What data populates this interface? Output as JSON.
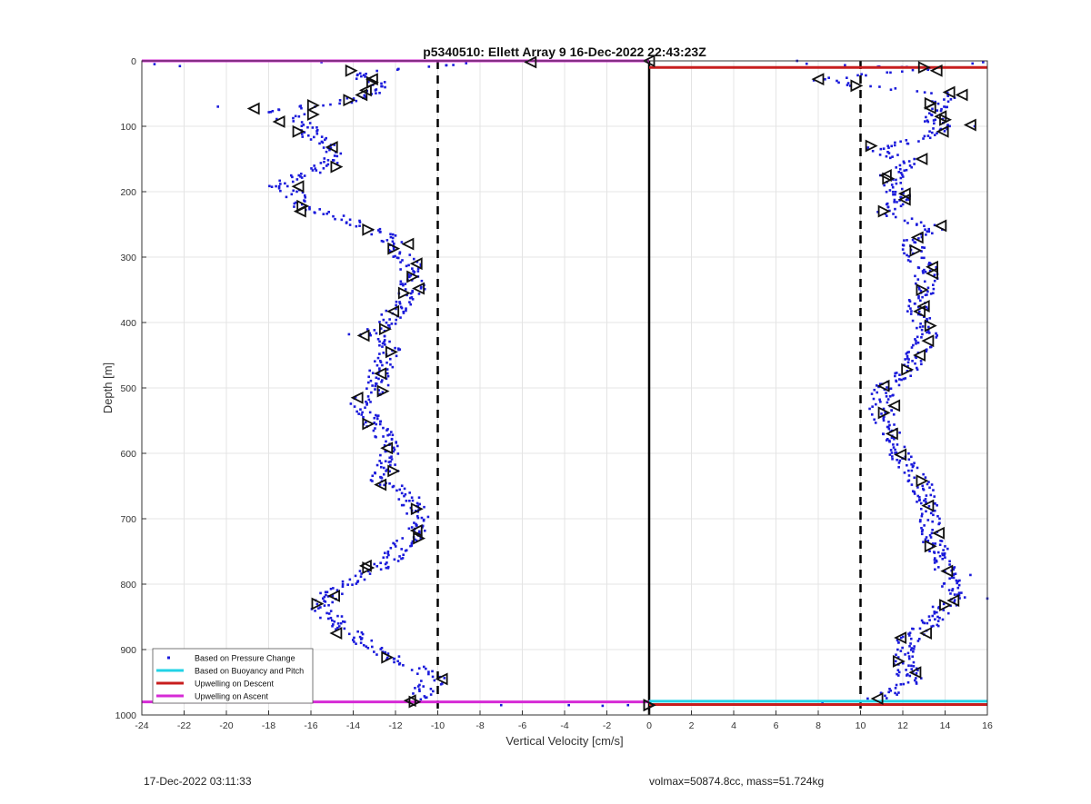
{
  "footer": {
    "left": "17-Dec-2022 03:11:33",
    "right": "volmax=50874.8cc, mass=51.724kg"
  },
  "colors": {
    "points": "#1a1adb",
    "buoyancy": "#22d3e6",
    "descent": "#c81e1e",
    "ascent": "#d62ad6",
    "markers": "#111111",
    "grid": "#e4e4e4"
  },
  "chart_data": {
    "type": "scatter",
    "title": "p5340510: Ellett Array 9 16-Dec-2022 22:43:23Z",
    "xlabel": "Vertical Velocity [cm/s]",
    "ylabel": "Depth [m]",
    "xlim": [
      -24,
      16
    ],
    "ylim": [
      0,
      1000
    ],
    "y_reversed": true,
    "grid": true,
    "xticks": [
      -24,
      -22,
      -20,
      -18,
      -16,
      -14,
      -12,
      -10,
      -8,
      -6,
      -4,
      -2,
      0,
      2,
      4,
      6,
      8,
      10,
      12,
      14,
      16
    ],
    "yticks": [
      0,
      100,
      200,
      300,
      400,
      500,
      600,
      700,
      800,
      900,
      1000
    ],
    "legend": {
      "location": "bottom-left",
      "entries": [
        {
          "label": "Based on Pressure Change",
          "style": "dot",
          "color": "#1a1adb"
        },
        {
          "label": "Based on Buoyancy and Pitch",
          "style": "line",
          "color": "#22d3e6"
        },
        {
          "label": "Upwelling on Descent",
          "style": "line",
          "color": "#c81e1e"
        },
        {
          "label": "Upwelling on Ascent",
          "style": "line",
          "color": "#d62ad6"
        }
      ]
    },
    "reference_lines": [
      {
        "x": -10,
        "style": "dashed"
      },
      {
        "x": 0,
        "style": "solid"
      },
      {
        "x": 10,
        "style": "dashed"
      }
    ],
    "upwelling_ascent": [
      [
        -24,
        0
      ],
      [
        0,
        0
      ],
      [
        -24,
        980
      ],
      [
        0,
        980
      ]
    ],
    "upwelling_descent": [
      [
        0,
        10
      ],
      [
        16,
        10
      ],
      [
        0,
        984
      ],
      [
        16,
        984
      ]
    ],
    "buoyancy_pitch": [
      [
        0,
        979
      ],
      [
        16,
        979
      ]
    ],
    "series": [
      {
        "name": "Based on Pressure Change",
        "role": "descent_profile",
        "profile": [
          [
            0,
            0
          ],
          [
            7,
            3
          ],
          [
            8,
            28
          ],
          [
            10,
            38
          ],
          [
            13,
            12
          ],
          [
            14,
            50
          ],
          [
            13.5,
            85
          ],
          [
            13.8,
            110
          ],
          [
            10.5,
            135
          ],
          [
            12.5,
            155
          ],
          [
            11.3,
            180
          ],
          [
            12,
            210
          ],
          [
            11.2,
            235
          ],
          [
            13.5,
            255
          ],
          [
            12.6,
            275
          ],
          [
            12.4,
            295
          ],
          [
            13.2,
            320
          ],
          [
            12.9,
            355
          ],
          [
            12.6,
            385
          ],
          [
            13.2,
            405
          ],
          [
            13.1,
            430
          ],
          [
            12.6,
            455
          ],
          [
            12.1,
            475
          ],
          [
            11.2,
            500
          ],
          [
            10.8,
            520
          ],
          [
            11.1,
            545
          ],
          [
            11.4,
            570
          ],
          [
            11.7,
            595
          ],
          [
            12.3,
            625
          ],
          [
            12.9,
            650
          ],
          [
            13.1,
            680
          ],
          [
            13.4,
            710
          ],
          [
            13.5,
            740
          ],
          [
            13.9,
            760
          ],
          [
            14.2,
            790
          ],
          [
            14.5,
            820
          ],
          [
            13.8,
            840
          ],
          [
            13.1,
            865
          ],
          [
            12.3,
            885
          ],
          [
            11.9,
            905
          ],
          [
            12.1,
            925
          ],
          [
            12.4,
            945
          ],
          [
            11.3,
            970
          ],
          [
            10,
            980
          ],
          [
            0,
            985
          ]
        ],
        "extra_points": [
          [
            7,
            0
          ],
          [
            15.3,
            4
          ],
          [
            15.8,
            2
          ],
          [
            16,
            822
          ],
          [
            15.2,
            786
          ],
          [
            15.4,
            100
          ],
          [
            12.7,
            150
          ],
          [
            1.2,
            984
          ],
          [
            5.5,
            984
          ],
          [
            8.2,
            981
          ]
        ]
      },
      {
        "name": "Based on Pressure Change",
        "role": "ascent_profile",
        "profile": [
          [
            -11,
            980
          ],
          [
            -10.2,
            945
          ],
          [
            -11.2,
            925
          ],
          [
            -12.3,
            912
          ],
          [
            -13.2,
            895
          ],
          [
            -14.2,
            872
          ],
          [
            -15.3,
            845
          ],
          [
            -15.6,
            830
          ],
          [
            -14.9,
            812
          ],
          [
            -13.7,
            790
          ],
          [
            -12.4,
            768
          ],
          [
            -11.8,
            745
          ],
          [
            -11.1,
            722
          ],
          [
            -10.9,
            700
          ],
          [
            -11.2,
            680
          ],
          [
            -11.6,
            658
          ],
          [
            -12.7,
            640
          ],
          [
            -12.3,
            625
          ],
          [
            -12.4,
            600
          ],
          [
            -12.5,
            580
          ],
          [
            -12.9,
            560
          ],
          [
            -13.3,
            545
          ],
          [
            -13.7,
            520
          ],
          [
            -12.8,
            505
          ],
          [
            -12.9,
            485
          ],
          [
            -12.6,
            465
          ],
          [
            -12.2,
            445
          ],
          [
            -12.4,
            425
          ],
          [
            -13.3,
            420
          ],
          [
            -12.6,
            405
          ],
          [
            -12.1,
            385
          ],
          [
            -11.5,
            360
          ],
          [
            -11.1,
            350
          ],
          [
            -11.4,
            330
          ],
          [
            -11.3,
            310
          ],
          [
            -11.9,
            285
          ],
          [
            -12.6,
            265
          ],
          [
            -13.3,
            255
          ],
          [
            -14.5,
            240
          ],
          [
            -16.3,
            225
          ],
          [
            -16.9,
            200
          ],
          [
            -17.6,
            190
          ],
          [
            -16.6,
            175
          ],
          [
            -15.6,
            165
          ],
          [
            -14.8,
            150
          ],
          [
            -15.2,
            135
          ],
          [
            -16.2,
            110
          ],
          [
            -16.3,
            95
          ],
          [
            -17.2,
            90
          ],
          [
            -18.4,
            78
          ],
          [
            -16.6,
            70
          ],
          [
            -15.9,
            82
          ],
          [
            -14.6,
            65
          ],
          [
            -13.3,
            50
          ],
          [
            -12.8,
            40
          ],
          [
            -13.8,
            20
          ],
          [
            -13.1,
            30
          ],
          [
            -8,
            2
          ],
          [
            -5,
            0
          ]
        ],
        "extra_points": [
          [
            -23.4,
            5
          ],
          [
            -22.2,
            8
          ],
          [
            -20.4,
            70
          ],
          [
            -17.5,
            192
          ],
          [
            -14.2,
            418
          ],
          [
            -7,
            985
          ],
          [
            -3.8,
            985
          ],
          [
            -2.2,
            986
          ],
          [
            -1,
            985
          ],
          [
            -16.5,
            0
          ],
          [
            -15.5,
            2
          ]
        ]
      }
    ],
    "triangle_markers_descent": [
      [
        0,
        0
      ],
      [
        13,
        10
      ],
      [
        13.6,
        15
      ],
      [
        8,
        28
      ],
      [
        9.8,
        38
      ],
      [
        14.2,
        48
      ],
      [
        14.8,
        52
      ],
      [
        13.3,
        65
      ],
      [
        13.3,
        72
      ],
      [
        13.8,
        85
      ],
      [
        14,
        90
      ],
      [
        15.2,
        98
      ],
      [
        13.9,
        108
      ],
      [
        10.5,
        130
      ],
      [
        12.9,
        150
      ],
      [
        11.2,
        175
      ],
      [
        11.3,
        180
      ],
      [
        12.1,
        203
      ],
      [
        12.1,
        212
      ],
      [
        11.1,
        230
      ],
      [
        13.8,
        252
      ],
      [
        12.7,
        270
      ],
      [
        12.6,
        290
      ],
      [
        13.4,
        315
      ],
      [
        13.4,
        325
      ],
      [
        12.9,
        350
      ],
      [
        13,
        375
      ],
      [
        12.8,
        383
      ],
      [
        13.3,
        405
      ],
      [
        13.2,
        428
      ],
      [
        12.8,
        450
      ],
      [
        12.2,
        472
      ],
      [
        11.1,
        497
      ],
      [
        11.6,
        527
      ],
      [
        11.1,
        538
      ],
      [
        11.5,
        570
      ],
      [
        11.9,
        602
      ],
      [
        12.9,
        642
      ],
      [
        13.2,
        680
      ],
      [
        13.7,
        722
      ],
      [
        13.3,
        742
      ],
      [
        14.1,
        780
      ],
      [
        14.4,
        825
      ],
      [
        14,
        832
      ],
      [
        13.1,
        875
      ],
      [
        11.9,
        882
      ],
      [
        11.8,
        918
      ],
      [
        12.6,
        935
      ],
      [
        10.8,
        975
      ],
      [
        0,
        985
      ]
    ],
    "triangle_markers_ascent": [
      [
        -5.6,
        2
      ],
      [
        -14.1,
        15
      ],
      [
        -13.1,
        28
      ],
      [
        -13.1,
        33
      ],
      [
        -13.4,
        45
      ],
      [
        -14.2,
        60
      ],
      [
        -13.6,
        52
      ],
      [
        -15.9,
        68
      ],
      [
        -18.7,
        73
      ],
      [
        -15.9,
        82
      ],
      [
        -17.5,
        93
      ],
      [
        -16.6,
        108
      ],
      [
        -15,
        132
      ],
      [
        -14.8,
        162
      ],
      [
        -16.6,
        192
      ],
      [
        -16.4,
        222
      ],
      [
        -16.5,
        230
      ],
      [
        -13.3,
        258
      ],
      [
        -11.4,
        280
      ],
      [
        -12.1,
        287
      ],
      [
        -11,
        310
      ],
      [
        -11.2,
        330
      ],
      [
        -10.9,
        348
      ],
      [
        -11.6,
        355
      ],
      [
        -12.1,
        383
      ],
      [
        -12.5,
        410
      ],
      [
        -13.5,
        420
      ],
      [
        -12.2,
        445
      ],
      [
        -12.7,
        478
      ],
      [
        -12.6,
        505
      ],
      [
        -13.8,
        515
      ],
      [
        -13.3,
        555
      ],
      [
        -12.4,
        592
      ],
      [
        -12.1,
        627
      ],
      [
        -12.7,
        648
      ],
      [
        -11,
        685
      ],
      [
        -11,
        718
      ],
      [
        -10.9,
        730
      ],
      [
        -13.4,
        772
      ],
      [
        -13.3,
        775
      ],
      [
        -14.9,
        818
      ],
      [
        -15.7,
        830
      ],
      [
        -14.8,
        875
      ],
      [
        -12.4,
        912
      ],
      [
        -9.8,
        945
      ],
      [
        -11.1,
        980
      ],
      [
        -11.3,
        978
      ],
      [
        0,
        985
      ]
    ]
  }
}
